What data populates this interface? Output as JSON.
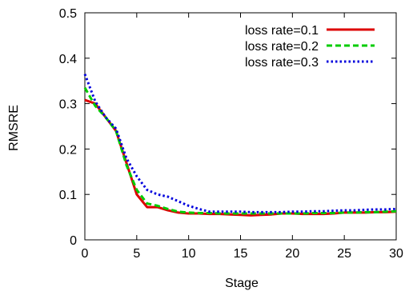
{
  "chart_data": {
    "type": "line",
    "xlabel": "Stage",
    "ylabel": "RMSRE",
    "xlim": [
      0,
      30
    ],
    "ylim": [
      0,
      0.5
    ],
    "xticks": [
      "0",
      "5",
      "10",
      "15",
      "20",
      "25",
      "30"
    ],
    "yticks": [
      "0",
      "0.1",
      "0.2",
      "0.3",
      "0.4",
      "0.5"
    ],
    "legend_position": "top-right",
    "grid": false,
    "x": [
      0,
      1,
      2,
      3,
      4,
      5,
      6,
      7,
      8,
      9,
      10,
      11,
      12,
      13,
      14,
      15,
      16,
      17,
      18,
      19,
      20,
      21,
      22,
      23,
      24,
      25,
      26,
      27,
      28,
      29,
      30
    ],
    "series": [
      {
        "name": "loss rate=0.1",
        "color": "#dd0000",
        "dash": "solid",
        "values": [
          0.308,
          0.3,
          0.27,
          0.24,
          0.17,
          0.1,
          0.072,
          0.072,
          0.065,
          0.06,
          0.058,
          0.058,
          0.057,
          0.057,
          0.056,
          0.055,
          0.054,
          0.055,
          0.056,
          0.058,
          0.058,
          0.057,
          0.057,
          0.057,
          0.058,
          0.06,
          0.06,
          0.06,
          0.061,
          0.061,
          0.062
        ]
      },
      {
        "name": "loss rate=0.2",
        "color": "#00cc00",
        "dash": "dashed",
        "values": [
          0.335,
          0.295,
          0.27,
          0.24,
          0.165,
          0.11,
          0.08,
          0.075,
          0.068,
          0.062,
          0.06,
          0.059,
          0.059,
          0.058,
          0.058,
          0.058,
          0.058,
          0.058,
          0.058,
          0.058,
          0.058,
          0.058,
          0.059,
          0.059,
          0.059,
          0.06,
          0.06,
          0.061,
          0.061,
          0.062,
          0.063
        ]
      },
      {
        "name": "loss rate=0.3",
        "color": "#0000dd",
        "dash": "dotted",
        "values": [
          0.365,
          0.305,
          0.27,
          0.245,
          0.18,
          0.14,
          0.11,
          0.1,
          0.095,
          0.085,
          0.075,
          0.068,
          0.062,
          0.062,
          0.062,
          0.062,
          0.061,
          0.061,
          0.061,
          0.061,
          0.062,
          0.062,
          0.063,
          0.063,
          0.064,
          0.065,
          0.065,
          0.066,
          0.067,
          0.067,
          0.068
        ]
      }
    ]
  }
}
